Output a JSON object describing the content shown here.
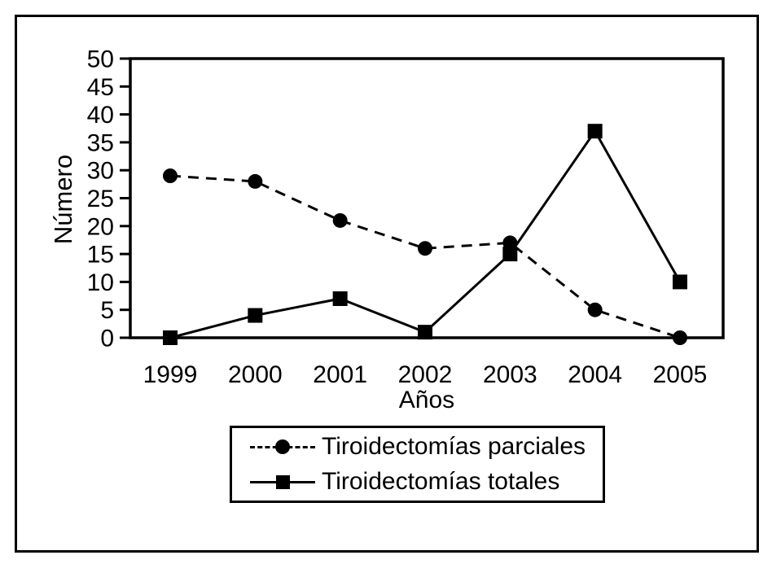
{
  "figure": {
    "colors": {
      "foreground": "#000000",
      "background": "#ffffff"
    }
  },
  "chart_data": {
    "type": "line",
    "title": "",
    "xlabel": "Años",
    "ylabel": "Número",
    "categories": [
      "1999",
      "2000",
      "2001",
      "2002",
      "2003",
      "2004",
      "2005"
    ],
    "y_ticks": [
      0,
      5,
      10,
      15,
      20,
      25,
      30,
      35,
      40,
      45,
      50
    ],
    "ylim": [
      0,
      50
    ],
    "grid": false,
    "legend_position": "bottom-center",
    "series": [
      {
        "name": "Tiroidectomías parciales",
        "marker": "circle",
        "line_style": "dashed",
        "color": "#000000",
        "values": [
          29,
          28,
          21,
          16,
          17,
          5,
          0
        ]
      },
      {
        "name": "Tiroidectomías totales",
        "marker": "square",
        "line_style": "solid",
        "color": "#000000",
        "values": [
          0,
          4,
          7,
          1,
          15,
          37,
          10
        ]
      }
    ]
  }
}
